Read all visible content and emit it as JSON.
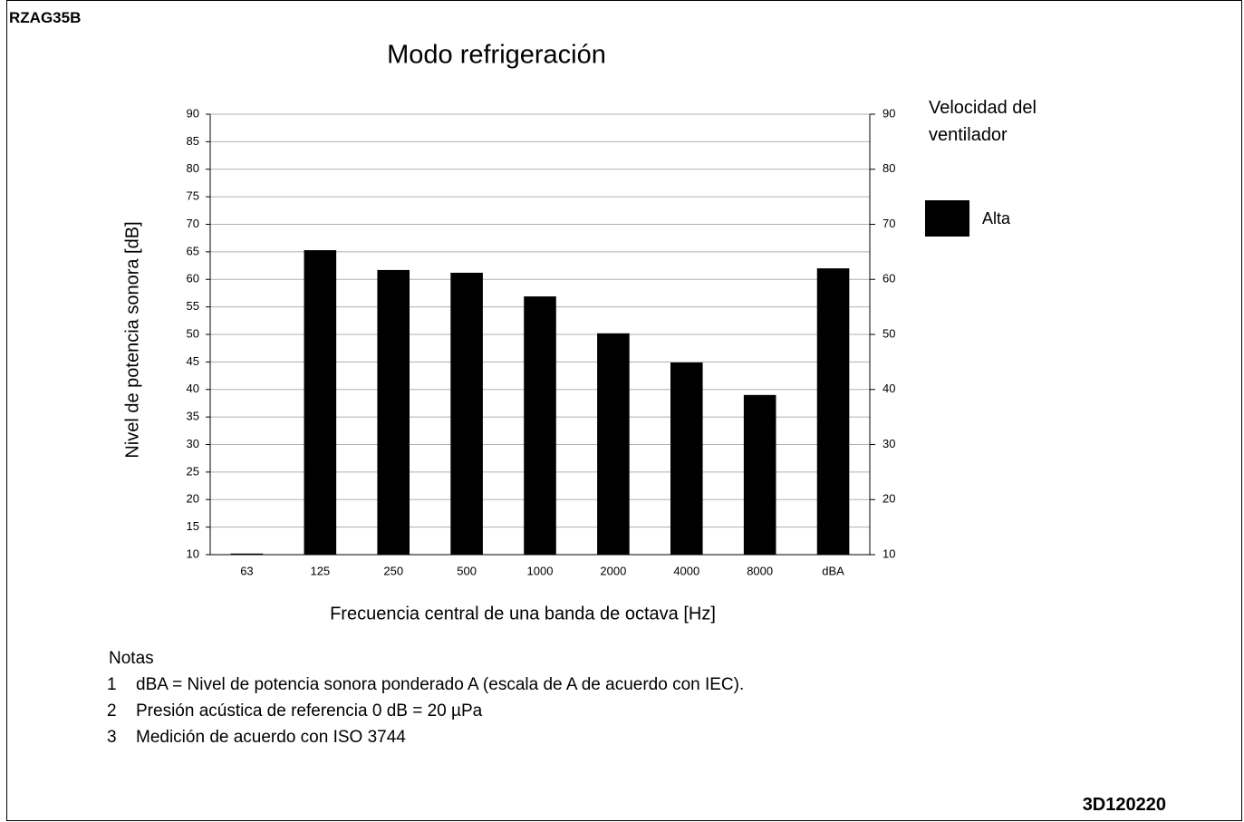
{
  "header": "RZAG35B",
  "code": "3D120220",
  "chart_data": {
    "type": "bar",
    "title": "Modo refrigeración",
    "xlabel": "Frecuencia central de una banda de octava [Hz]",
    "ylabel": "Nivel de potencia sonora [dB]",
    "categories": [
      "63",
      "125",
      "250",
      "500",
      "1000",
      "2000",
      "4000",
      "8000",
      "dBA"
    ],
    "series": [
      {
        "name": "Alta",
        "color": "#000000",
        "values": [
          10.2,
          65.3,
          61.7,
          61.2,
          56.9,
          50.2,
          44.9,
          39.0,
          62.0
        ]
      }
    ],
    "legend_title": "Velocidad del ventilador",
    "ylim": [
      10,
      90
    ],
    "yticks": [
      10,
      15,
      20,
      25,
      30,
      35,
      40,
      45,
      50,
      55,
      60,
      65,
      70,
      75,
      80,
      85,
      90
    ],
    "y2lim": [
      10,
      90
    ],
    "y2ticks": [
      10,
      20,
      30,
      40,
      50,
      60,
      70,
      80,
      90
    ],
    "grid": true
  },
  "notes": {
    "title": "Notas",
    "items": [
      {
        "number": 1,
        "text": "dBA = Nivel de potencia sonora ponderado A (escala de A de acuerdo con IEC)."
      },
      {
        "number": 2,
        "text": "Presión acústica de referencia 0 dB = 20 µPa"
      },
      {
        "number": 3,
        "text": "Medición de acuerdo con ISO 3744"
      }
    ]
  }
}
